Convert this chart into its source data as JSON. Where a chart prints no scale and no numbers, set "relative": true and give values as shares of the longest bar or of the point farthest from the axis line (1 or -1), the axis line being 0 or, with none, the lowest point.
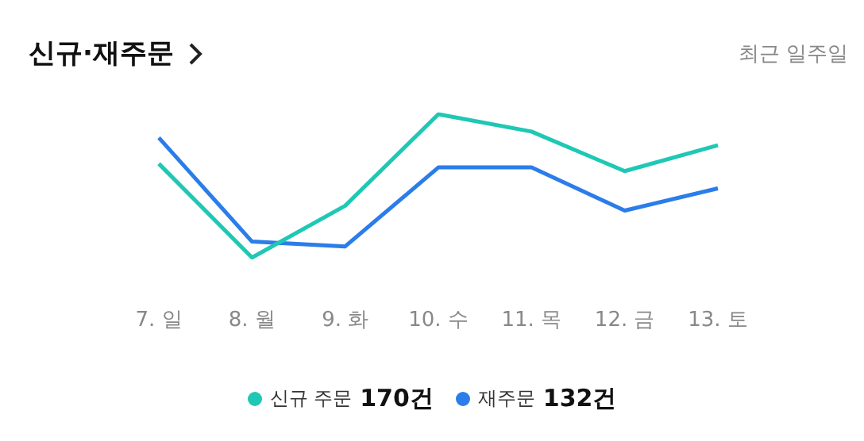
{
  "chart_data": {
    "type": "line",
    "title": "신규·재주문",
    "subtitle": "최근 일주일",
    "categories": [
      "7. 일",
      "8. 월",
      "9. 화",
      "10. 수",
      "11. 목",
      "12. 금",
      "13. 토"
    ],
    "relative": true,
    "marker": "none",
    "legend": "bottom",
    "annotations": [
      "170건",
      "132건"
    ],
    "series": [
      {
        "name": "신규 주문",
        "color": "#1ec8b4",
        "values": [
          0.655,
          0,
          0.362,
          1,
          0.879,
          0.603,
          0.784
        ]
      },
      {
        "name": "재주문",
        "color": "#2b7de9",
        "values": [
          0.836,
          0.112,
          0.078,
          0.629,
          0.629,
          0.328,
          0.483
        ]
      }
    ]
  }
}
